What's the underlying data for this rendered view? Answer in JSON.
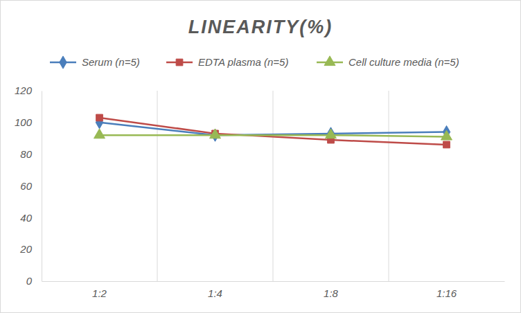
{
  "chart_data": {
    "type": "line",
    "title": "LINEARITY(%)",
    "categories": [
      "1:2",
      "1:4",
      "1:8",
      "1:16"
    ],
    "series": [
      {
        "name": "Serum (n=5)",
        "color": "#4a7ebb",
        "marker": "diamond",
        "line_style": "solid",
        "values": [
          100,
          92,
          93,
          94
        ]
      },
      {
        "name": "EDTA plasma (n=5)",
        "color": "#be4b48",
        "marker": "square",
        "line_style": "solid",
        "values": [
          103,
          93,
          89,
          86
        ]
      },
      {
        "name": "Cell culture media (n=5)",
        "color": "#98b954",
        "marker": "triangle",
        "line_style": "solid",
        "values": [
          92,
          92,
          92,
          91
        ]
      }
    ],
    "ylim": [
      0,
      120
    ],
    "yticks": [
      0,
      20,
      40,
      60,
      80,
      100,
      120
    ],
    "grid": true,
    "legend": "top"
  }
}
